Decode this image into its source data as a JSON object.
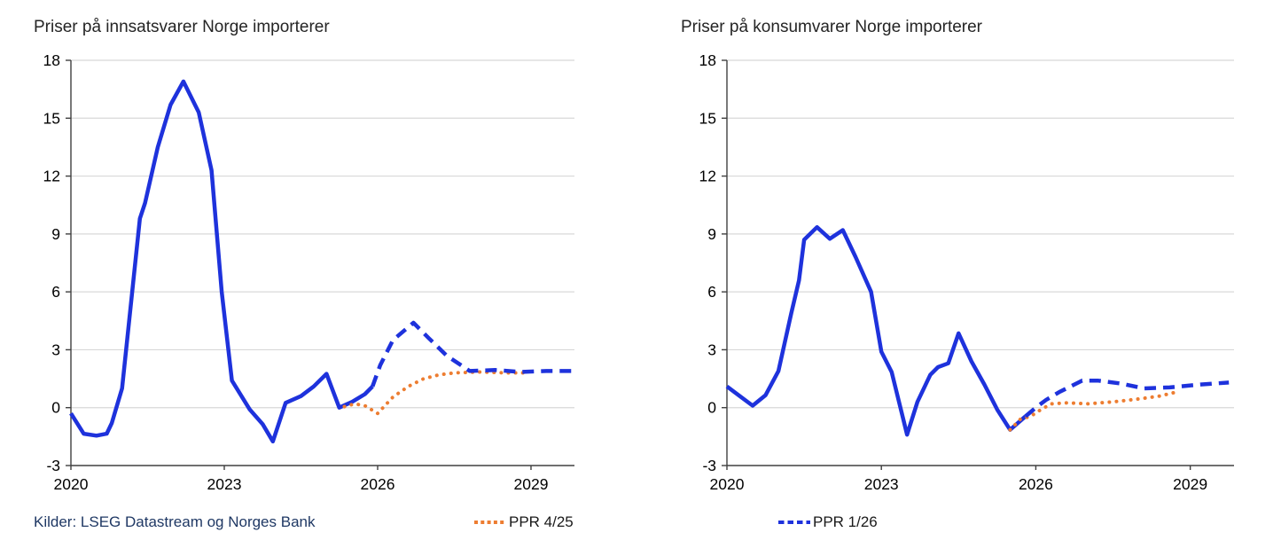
{
  "source_note": "Kilder: LSEG Datastream og Norges Bank",
  "legend": [
    {
      "label": "PPR 4/25",
      "series_key": "ppr425",
      "color": "#ED7D31",
      "style": "dotted"
    },
    {
      "label": "PPR 1/26",
      "series_key": "ppr126",
      "color": "#1E32DC",
      "style": "dashed"
    }
  ],
  "colors": {
    "line_blue": "#1E32DC",
    "projection_orange": "#ED7D31",
    "grid": "#D8D8D8",
    "axis": "#404040",
    "tick_text": "#000000",
    "title_text": "#252525",
    "source_text": "#1F3864"
  },
  "chart_data": [
    {
      "type": "line",
      "title": "Priser på innsatsvarer Norge importerer",
      "xlabel": "",
      "ylabel": "",
      "ylim": [
        -3,
        18
      ],
      "yticks": [
        -3,
        0,
        3,
        6,
        9,
        12,
        15,
        18
      ],
      "xlim": [
        2020,
        2029.85
      ],
      "xticks": [
        2020,
        2023,
        2026,
        2029
      ],
      "grid": "horizontal",
      "legend_position": "below",
      "series": [
        {
          "key": "history",
          "name": "",
          "style": "solid",
          "color": "#1E32DC",
          "points": [
            [
              2020,
              -0.3
            ],
            [
              2020.25,
              -1.35
            ],
            [
              2020.5,
              -1.45
            ],
            [
              2020.7,
              -1.35
            ],
            [
              2020.8,
              -0.8
            ],
            [
              2021,
              1.0
            ],
            [
              2021.35,
              9.8
            ],
            [
              2021.45,
              10.6
            ],
            [
              2021.7,
              13.5
            ],
            [
              2021.95,
              15.7
            ],
            [
              2022.2,
              16.9
            ],
            [
              2022.5,
              15.3
            ],
            [
              2022.75,
              12.3
            ],
            [
              2022.95,
              6.0
            ],
            [
              2023.15,
              1.4
            ],
            [
              2023.5,
              -0.1
            ],
            [
              2023.75,
              -0.85
            ],
            [
              2023.95,
              -1.75
            ],
            [
              2024.2,
              0.25
            ],
            [
              2024.5,
              0.6
            ],
            [
              2024.75,
              1.1
            ],
            [
              2025,
              1.75
            ],
            [
              2025.25,
              0.0
            ],
            [
              2025.5,
              0.3
            ],
            [
              2025.75,
              0.7
            ],
            [
              2025.9,
              1.1
            ]
          ]
        },
        {
          "key": "ppr425",
          "name": "PPR 4/25",
          "style": "dotted",
          "color": "#ED7D31",
          "points": [
            [
              2025.35,
              0.05
            ],
            [
              2025.55,
              0.2
            ],
            [
              2025.75,
              0.1
            ],
            [
              2026,
              -0.3
            ],
            [
              2026.3,
              0.55
            ],
            [
              2026.6,
              1.1
            ],
            [
              2026.9,
              1.5
            ],
            [
              2027.2,
              1.7
            ],
            [
              2027.5,
              1.8
            ],
            [
              2028,
              1.85
            ],
            [
              2028.5,
              1.8
            ],
            [
              2028.85,
              1.8
            ]
          ]
        },
        {
          "key": "ppr126",
          "name": "PPR 1/26",
          "style": "dashed",
          "color": "#1E32DC",
          "points": [
            [
              2025.9,
              1.1
            ],
            [
              2026.05,
              2.2
            ],
            [
              2026.3,
              3.5
            ],
            [
              2026.7,
              4.4
            ],
            [
              2027,
              3.6
            ],
            [
              2027.35,
              2.7
            ],
            [
              2027.8,
              1.9
            ],
            [
              2028.3,
              1.95
            ],
            [
              2028.8,
              1.85
            ],
            [
              2029.3,
              1.9
            ],
            [
              2029.8,
              1.9
            ]
          ]
        }
      ]
    },
    {
      "type": "line",
      "title": "Priser på konsumvarer Norge importerer",
      "xlabel": "",
      "ylabel": "",
      "ylim": [
        -3,
        18
      ],
      "yticks": [
        -3,
        0,
        3,
        6,
        9,
        12,
        15,
        18
      ],
      "xlim": [
        2020,
        2029.85
      ],
      "xticks": [
        2020,
        2023,
        2026,
        2029
      ],
      "grid": "horizontal",
      "legend_position": "below",
      "series": [
        {
          "key": "history",
          "name": "",
          "style": "solid",
          "color": "#1E32DC",
          "points": [
            [
              2020,
              1.1
            ],
            [
              2020.25,
              0.6
            ],
            [
              2020.5,
              0.1
            ],
            [
              2020.75,
              0.65
            ],
            [
              2021,
              1.9
            ],
            [
              2021.25,
              4.9
            ],
            [
              2021.4,
              6.6
            ],
            [
              2021.5,
              8.7
            ],
            [
              2021.75,
              9.35
            ],
            [
              2022,
              8.75
            ],
            [
              2022.25,
              9.2
            ],
            [
              2022.5,
              7.8
            ],
            [
              2022.8,
              6.0
            ],
            [
              2023,
              2.9
            ],
            [
              2023.2,
              1.85
            ],
            [
              2023.5,
              -1.4
            ],
            [
              2023.7,
              0.3
            ],
            [
              2023.95,
              1.7
            ],
            [
              2024.1,
              2.1
            ],
            [
              2024.3,
              2.3
            ],
            [
              2024.5,
              3.85
            ],
            [
              2024.75,
              2.4
            ],
            [
              2025,
              1.2
            ],
            [
              2025.25,
              -0.1
            ],
            [
              2025.5,
              -1.15
            ],
            [
              2025.8,
              -0.45
            ]
          ]
        },
        {
          "key": "ppr425",
          "name": "PPR 4/25",
          "style": "dotted",
          "color": "#ED7D31",
          "points": [
            [
              2025.5,
              -1.15
            ],
            [
              2025.7,
              -0.6
            ],
            [
              2025.9,
              -0.45
            ],
            [
              2026.1,
              -0.1
            ],
            [
              2026.3,
              0.2
            ],
            [
              2026.6,
              0.25
            ],
            [
              2027,
              0.2
            ],
            [
              2027.5,
              0.3
            ],
            [
              2028,
              0.45
            ],
            [
              2028.4,
              0.6
            ],
            [
              2028.8,
              0.85
            ]
          ]
        },
        {
          "key": "ppr126",
          "name": "PPR 1/26",
          "style": "dashed",
          "color": "#1E32DC",
          "points": [
            [
              2025.8,
              -0.45
            ],
            [
              2026,
              0.0
            ],
            [
              2026.2,
              0.4
            ],
            [
              2026.45,
              0.8
            ],
            [
              2026.9,
              1.4
            ],
            [
              2027.2,
              1.4
            ],
            [
              2027.65,
              1.25
            ],
            [
              2028.1,
              1.0
            ],
            [
              2028.6,
              1.05
            ],
            [
              2029.2,
              1.2
            ],
            [
              2029.75,
              1.3
            ]
          ]
        }
      ]
    }
  ]
}
